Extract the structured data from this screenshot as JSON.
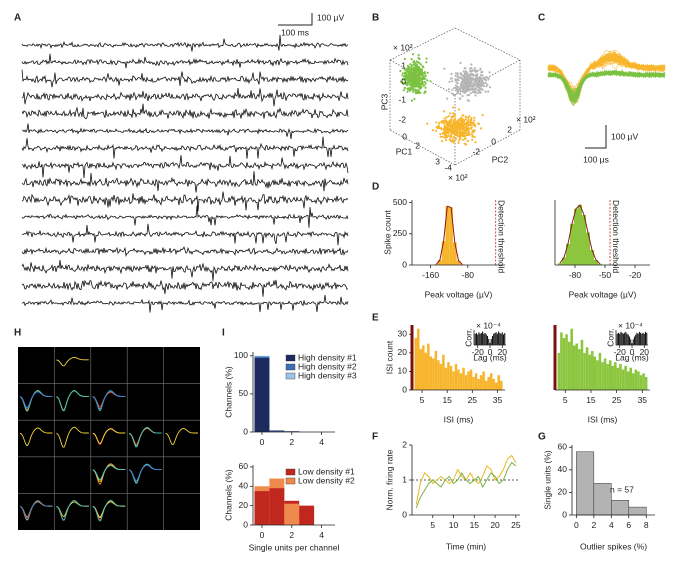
{
  "panel_labels": [
    "A",
    "B",
    "C",
    "D",
    "E",
    "F",
    "G",
    "H",
    "I"
  ],
  "panel_a": {
    "scale_voltage": "100 µV",
    "scale_time": "100 ms"
  },
  "panel_b": {
    "axes": [
      {
        "label": "PC3",
        "exponent": "× 10²",
        "ticks": [
          1,
          0,
          -1,
          -2
        ]
      },
      {
        "label": "PC1",
        "exponent": "× 10²",
        "ticks": [
          0,
          2,
          3
        ]
      },
      {
        "label": "PC2",
        "exponent": "× 10²",
        "ticks": [
          -4,
          -2,
          0,
          2
        ]
      }
    ]
  },
  "panel_c": {
    "scale_voltage": "100 µV",
    "scale_time": "100 µs"
  },
  "chart_data": [
    {
      "type": "histogram",
      "ylabel": "Spike count",
      "xlabel": "Peak voltage (µV)",
      "bins": [
        -152,
        -144,
        -136,
        -128,
        -120,
        -112,
        -104,
        -96,
        -88
      ],
      "values": [
        5,
        40,
        190,
        470,
        460,
        180,
        35,
        5
      ],
      "color": "#f7b52c",
      "line_color": "#8b1a1a",
      "xlim": [
        -200,
        0
      ],
      "xticks": [
        -160,
        -80
      ],
      "ylim": [
        0,
        520
      ],
      "yticks": [
        0,
        250,
        500
      ],
      "threshold": -20,
      "threshold_label": "Detection threshold"
    },
    {
      "type": "histogram",
      "xlabel": "Peak voltage (µV)",
      "bins": [
        -97,
        -93,
        -89,
        -85,
        -81,
        -77,
        -73,
        -69,
        -65,
        -61,
        -57,
        -53
      ],
      "values": [
        15,
        60,
        170,
        330,
        450,
        480,
        400,
        260,
        120,
        40,
        10
      ],
      "color": "#8cc63f",
      "line_color": "#8b1a1a",
      "xlim": [
        -100,
        -5
      ],
      "xticks": [
        -80,
        -50,
        -20
      ],
      "ylim": [
        0,
        520
      ],
      "threshold": -45,
      "threshold_label": "Detection threshold"
    },
    {
      "type": "histogram",
      "ylabel": "ISI count",
      "xlabel": "ISI (ms)",
      "bins": [
        2,
        3,
        4,
        5,
        6,
        7,
        8,
        9,
        10,
        11,
        12,
        13,
        14,
        15,
        16,
        17,
        18,
        19,
        20,
        21,
        22,
        23,
        24,
        25,
        26,
        27,
        28,
        29,
        30,
        31,
        32,
        33,
        34,
        35,
        36,
        37
      ],
      "values": [
        28,
        33,
        22,
        24,
        20,
        25,
        18,
        17,
        21,
        16,
        14,
        19,
        12,
        15,
        13,
        10,
        14,
        11,
        9,
        12,
        8,
        10,
        11,
        7,
        9,
        6,
        8,
        10,
        5,
        7,
        9,
        6,
        4,
        8,
        5
      ],
      "color": "#f7b52c",
      "xlim": [
        1,
        38
      ],
      "xticks": [
        5,
        15,
        25,
        35
      ],
      "ylim": [
        0,
        35
      ],
      "yticks": [
        0,
        10,
        20,
        30
      ],
      "inset": {
        "type": "bar",
        "ylabel": "Corr.",
        "exponent": "× 10⁻⁴",
        "xlabel": "Lag (ms)",
        "x": [
          -24,
          -22,
          -20,
          -18,
          -16,
          -14,
          -12,
          -10,
          -8,
          -6,
          -4,
          -2,
          0,
          2,
          4,
          6,
          8,
          10,
          12,
          14,
          16,
          18,
          20,
          22,
          24
        ],
        "values": [
          1.5,
          1.6,
          1.4,
          1.7,
          1.5,
          1.6,
          1.8,
          1.5,
          1.6,
          1.4,
          1.2,
          0.8,
          0.3,
          0.8,
          1.2,
          1.5,
          1.6,
          1.7,
          1.5,
          1.8,
          1.6,
          1.5,
          1.7,
          1.4,
          1.6
        ],
        "color": "#111111",
        "xlim": [
          -26,
          26
        ],
        "xticks": [
          -20,
          0,
          20
        ],
        "ylim": [
          0,
          2
        ]
      }
    },
    {
      "type": "histogram",
      "xlabel": "ISI (ms)",
      "bins": [
        2,
        3,
        4,
        5,
        6,
        7,
        8,
        9,
        10,
        11,
        12,
        13,
        14,
        15,
        16,
        17,
        18,
        19,
        20,
        21,
        22,
        23,
        24,
        25,
        26,
        27,
        28,
        29,
        30,
        31,
        32,
        33,
        34,
        35,
        36,
        37
      ],
      "values": [
        20,
        31,
        28,
        30,
        26,
        33,
        24,
        25,
        22,
        27,
        20,
        23,
        19,
        21,
        18,
        16,
        20,
        15,
        17,
        14,
        16,
        13,
        15,
        12,
        14,
        11,
        13,
        10,
        12,
        9,
        11,
        10,
        8,
        9,
        7
      ],
      "color": "#8cc63f",
      "xlim": [
        1,
        38
      ],
      "xticks": [
        5,
        15,
        25,
        35
      ],
      "ylim": [
        0,
        35
      ],
      "inset": {
        "type": "bar",
        "ylabel": "Corr.",
        "exponent": "× 10⁻⁴",
        "xlabel": "Lag (ms)",
        "x": [
          -24,
          -22,
          -20,
          -18,
          -16,
          -14,
          -12,
          -10,
          -8,
          -6,
          -4,
          -2,
          0,
          2,
          4,
          6,
          8,
          10,
          12,
          14,
          16,
          18,
          20,
          22,
          24
        ],
        "values": [
          1.2,
          1.3,
          1.2,
          1.4,
          1.3,
          1.2,
          1.3,
          1.4,
          1.2,
          1.1,
          0.9,
          0.6,
          0.2,
          0.6,
          0.9,
          1.1,
          1.3,
          1.2,
          1.4,
          1.3,
          1.2,
          1.3,
          1.2,
          1.4,
          1.3
        ],
        "color": "#111111",
        "xlim": [
          -26,
          26
        ],
        "xticks": [
          -20,
          0,
          20
        ],
        "ylim": [
          0,
          1.6
        ]
      }
    },
    {
      "type": "line",
      "ylabel": "Norm. firing rate",
      "xlabel": "Time (min)",
      "x": [
        1,
        2,
        3,
        4,
        5,
        6,
        7,
        8,
        9,
        10,
        11,
        12,
        13,
        14,
        15,
        16,
        17,
        18,
        19,
        20,
        21,
        22,
        23,
        24,
        25
      ],
      "series": [
        {
          "color": "#e8b820",
          "values": [
            0.3,
            0.9,
            1.2,
            1.1,
            0.9,
            1.0,
            1.1,
            1.0,
            0.9,
            1.0,
            1.3,
            1.1,
            1.0,
            1.2,
            1.0,
            0.9,
            1.1,
            1.4,
            1.3,
            1.0,
            1.1,
            1.3,
            1.6,
            1.7,
            1.5
          ]
        },
        {
          "color": "#7cb342",
          "values": [
            0.2,
            0.5,
            0.7,
            0.9,
            1.0,
            0.9,
            0.8,
            1.0,
            1.1,
            0.9,
            1.0,
            1.2,
            1.0,
            0.9,
            1.0,
            1.1,
            0.8,
            1.0,
            1.2,
            1.1,
            0.9,
            1.0,
            1.3,
            1.5,
            1.4
          ]
        }
      ],
      "reference_line": 1,
      "xlim": [
        0,
        26
      ],
      "xticks": [
        5,
        10,
        15,
        20,
        25
      ],
      "ylim": [
        0,
        2
      ],
      "yticks": [
        0,
        1,
        2
      ]
    },
    {
      "type": "histogram",
      "ylabel": "Single units (%)",
      "xlabel": "Outlier spikes (%)",
      "bins": [
        0,
        2,
        4,
        6,
        8
      ],
      "values": [
        56,
        28,
        13,
        7
      ],
      "color": "#b3b3b3",
      "edge_color": "#333333",
      "xlim": [
        -0.5,
        9
      ],
      "xticks": [
        0,
        2,
        4,
        6,
        8
      ],
      "ylim": [
        0,
        62
      ],
      "yticks": [
        0,
        20,
        40,
        60
      ],
      "annotation": "n = 57"
    },
    {
      "type": "bar",
      "ylabel": "Channels (%)",
      "x": [
        0,
        1,
        2,
        3
      ],
      "series": [
        {
          "name": "High density #1",
          "color": "#1c2a5e",
          "values": [
            97,
            2,
            1,
            0
          ]
        },
        {
          "name": "High density #2",
          "color": "#3b6fb6",
          "values": [
            99,
            1,
            0,
            0
          ]
        },
        {
          "name": "High density #3",
          "color": "#9cc3e6",
          "values": [
            100,
            0,
            0,
            0
          ]
        }
      ],
      "xlim": [
        -0.6,
        4.9
      ],
      "xticks": [
        0,
        2,
        4
      ],
      "ylim": [
        0,
        105
      ],
      "yticks": [
        0,
        50,
        100
      ]
    },
    {
      "type": "bar",
      "ylabel": "Channels (%)",
      "xlabel": "Single units per channel",
      "x": [
        0,
        1,
        2,
        3
      ],
      "series": [
        {
          "name": "Low density #1",
          "color": "#c0281f",
          "values": [
            35,
            38,
            25,
            20
          ]
        },
        {
          "name": "Low density #2",
          "color": "#ef8a4c",
          "values": [
            40,
            48,
            22,
            0
          ]
        }
      ],
      "xlim": [
        -0.6,
        4.9
      ],
      "xticks": [
        0,
        2,
        4
      ],
      "ylim": [
        0,
        62
      ],
      "yticks": [
        0,
        20,
        40,
        60
      ]
    }
  ]
}
